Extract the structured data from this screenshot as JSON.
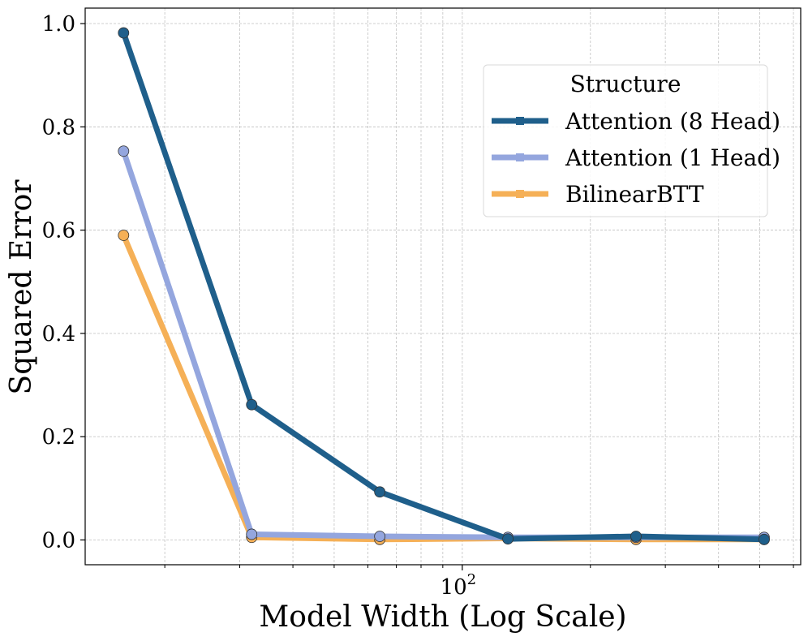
{
  "chart_data": {
    "type": "line",
    "title": "",
    "xlabel": "Model Width (Log Scale)",
    "ylabel": "Squared Error",
    "xscale": "log",
    "x": [
      16,
      32,
      64,
      128,
      256,
      512
    ],
    "xlim": [
      13.0,
      624
    ],
    "ylim": [
      -0.048,
      1.03
    ],
    "yticks": [
      0.0,
      0.2,
      0.4,
      0.6,
      0.8,
      1.0
    ],
    "ytick_labels": [
      "0.0",
      "0.2",
      "0.4",
      "0.6",
      "0.8",
      "1.0"
    ],
    "xtick_major": {
      "value": 100,
      "base": "10",
      "exp": "2"
    },
    "xtick_minor": [
      20,
      30,
      40,
      50,
      60,
      70,
      80,
      90,
      200,
      300,
      400,
      500,
      600
    ],
    "grid": true,
    "legend": {
      "title": "Structure",
      "placement": "upper right"
    },
    "series": [
      {
        "name": "Attention (8 Head)",
        "color": "#1f5f8b",
        "values": [
          0.982,
          0.262,
          0.093,
          0.002,
          0.007,
          0.001
        ]
      },
      {
        "name": "Attention (1 Head)",
        "color": "#94a6de",
        "values": [
          0.753,
          0.011,
          0.007,
          0.005,
          0.005,
          0.005
        ]
      },
      {
        "name": "BilinearBTT",
        "color": "#f5b057",
        "values": [
          0.59,
          0.005,
          0.001,
          0.003,
          0.001,
          0.001
        ]
      }
    ],
    "draw_order": [
      2,
      1,
      0
    ]
  }
}
